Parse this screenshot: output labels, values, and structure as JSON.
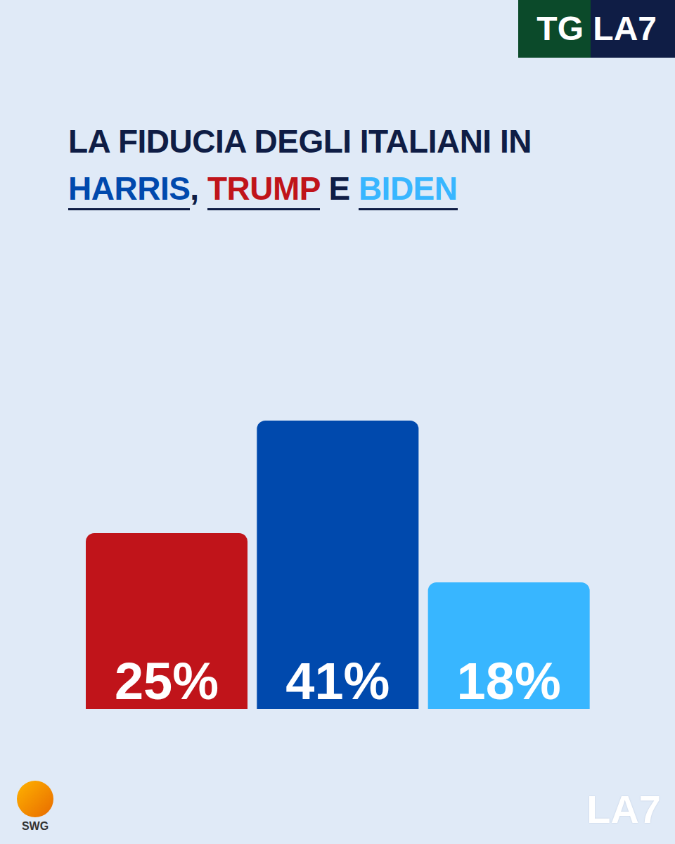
{
  "chart_data": {
    "type": "bar",
    "title": "LA FIDUCIA DEGLI ITALIANI IN HARRIS, TRUMP E BIDEN",
    "categories": [
      "TRUMP",
      "HARRIS",
      "BIDEN"
    ],
    "values": [
      25,
      41,
      18
    ],
    "value_labels": [
      "25%",
      "41%",
      "18%"
    ],
    "colors": [
      "#c0141a",
      "#0049ad",
      "#38b6ff"
    ],
    "ylim": [
      0,
      50
    ],
    "data_labels": true,
    "tick_labels": false,
    "grid": false,
    "annotations": [
      "TG LA7",
      "SWG",
      "LA7"
    ]
  }
}
